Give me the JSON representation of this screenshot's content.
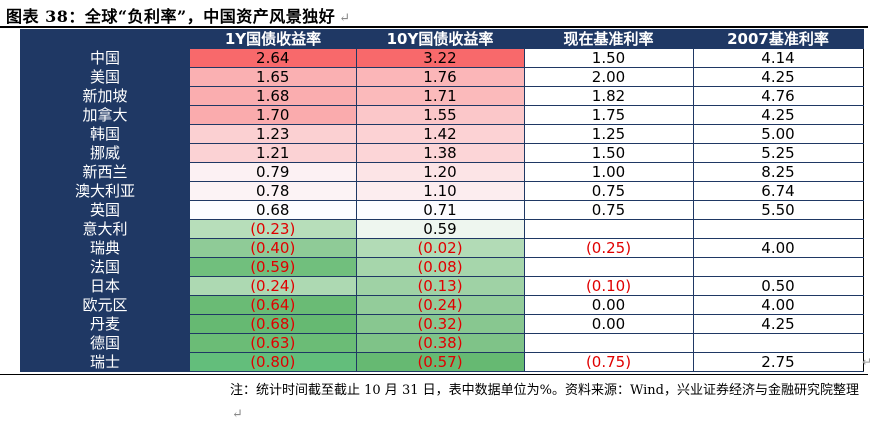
{
  "title": "图表 38：全球“负利率”，中国资产风景独好",
  "return_mark": "↵",
  "table": {
    "headers": [
      "",
      "1Y国债收益率",
      "10Y国债收益率",
      "现在基准利率",
      "2007基准利率"
    ],
    "rows": [
      {
        "country": "中国",
        "y1": "2.64",
        "y10": "3.22",
        "now": "1.50",
        "y2007": "4.14",
        "c1": "#f8696b",
        "c10": "#f8696b"
      },
      {
        "country": "美国",
        "y1": "1.65",
        "y10": "1.76",
        "now": "2.00",
        "y2007": "4.25",
        "c1": "#fab0b2",
        "c10": "#fbb6b8"
      },
      {
        "country": "新加坡",
        "y1": "1.68",
        "y10": "1.71",
        "now": "1.82",
        "y2007": "4.76",
        "c1": "#faadaf",
        "c10": "#fbbabb"
      },
      {
        "country": "加拿大",
        "y1": "1.70",
        "y10": "1.55",
        "now": "1.75",
        "y2007": "4.25",
        "c1": "#faabad",
        "c10": "#fbc7c9"
      },
      {
        "country": "韩国",
        "y1": "1.23",
        "y10": "1.42",
        "now": "1.25",
        "y2007": "5.00",
        "c1": "#fbd0d2",
        "c10": "#fcd2d4"
      },
      {
        "country": "挪威",
        "y1": "1.21",
        "y10": "1.38",
        "now": "1.50",
        "y2007": "5.25",
        "c1": "#fbd2d4",
        "c10": "#fcd5d7"
      },
      {
        "country": "新西兰",
        "y1": "0.79",
        "y10": "1.20",
        "now": "1.00",
        "y2007": "8.25",
        "c1": "#fcf1f3",
        "c10": "#fce4e6"
      },
      {
        "country": "澳大利亚",
        "y1": "0.78",
        "y10": "1.10",
        "now": "0.75",
        "y2007": "6.74",
        "c1": "#fcf3f5",
        "c10": "#fcedef"
      },
      {
        "country": "英国",
        "y1": "0.68",
        "y10": "0.71",
        "now": "0.75",
        "y2007": "5.50",
        "c1": "#fcfcff",
        "c10": "#fcfcff"
      },
      {
        "country": "意大利",
        "y1": "(0.23)",
        "y10": "0.59",
        "now": "",
        "y2007": "",
        "c1": "#b7deba",
        "c10": "#eef6ef"
      },
      {
        "country": "瑞典",
        "y1": "(0.40)",
        "y10": "(0.02)",
        "now": "(0.25)",
        "y2007": "4.00",
        "c1": "#8fcb97",
        "c10": "#b2dbb6"
      },
      {
        "country": "法国",
        "y1": "(0.59)",
        "y10": "(0.08)",
        "now": "",
        "y2007": "",
        "c1": "#71bf7d",
        "c10": "#a6d6ab"
      },
      {
        "country": "日本",
        "y1": "(0.24)",
        "y10": "(0.13)",
        "now": "(0.10)",
        "y2007": "0.50",
        "c1": "#add9b2",
        "c10": "#9fd2a5"
      },
      {
        "country": "欧元区",
        "y1": "(0.64)",
        "y10": "(0.24)",
        "now": "0.00",
        "y2007": "4.00",
        "c1": "#6abb75",
        "c10": "#93cc9a"
      },
      {
        "country": "丹麦",
        "y1": "(0.68)",
        "y10": "(0.32)",
        "now": "0.00",
        "y2007": "4.25",
        "c1": "#66b972",
        "c10": "#88c790"
      },
      {
        "country": "德国",
        "y1": "(0.63)",
        "y10": "(0.38)",
        "now": "",
        "y2007": "",
        "c1": "#6bbc76",
        "c10": "#7fc388"
      },
      {
        "country": "瑞士",
        "y1": "(0.80)",
        "y10": "(0.57)",
        "now": "(0.75)",
        "y2007": "2.75",
        "c1": "#63be7b",
        "c10": "#66b972"
      }
    ]
  },
  "note": "注：统计时间截至截止 10 月 31 日，表中数据单位为%。资料来源：Wind，兴业证券经济与金融研究院整理"
}
